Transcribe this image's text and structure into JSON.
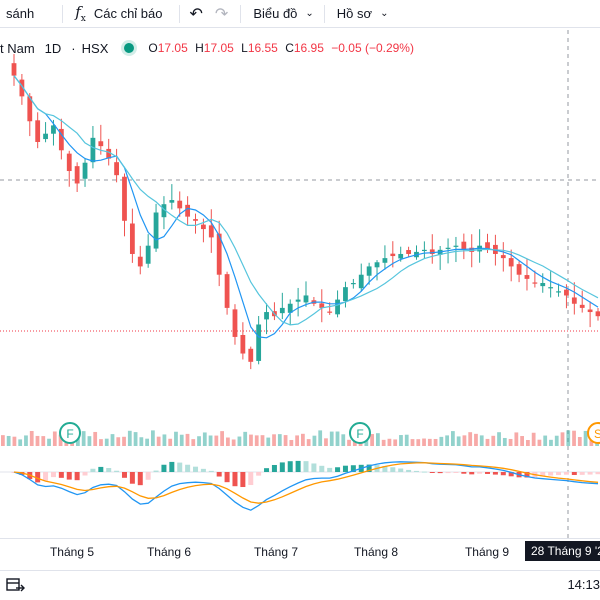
{
  "toolbar": {
    "compare_label": "sánh",
    "indicators_label": "Các chỉ báo",
    "chart_label": "Biểu đồ",
    "profile_label": "Hồ sơ"
  },
  "legend": {
    "symbol": "t Nam",
    "interval": "1D",
    "exchange": "HSX",
    "o_label": "O",
    "o_value": "17.05",
    "h_label": "H",
    "h_value": "17.05",
    "l_label": "L",
    "l_value": "16.55",
    "c_label": "C",
    "c_value": "16.95",
    "change": "−0.05 (−0.29%)"
  },
  "chart_data": {
    "type": "candlestick",
    "x_labels": [
      "Tháng 5",
      "Tháng 6",
      "Tháng 7",
      "Tháng 8",
      "Tháng 9"
    ],
    "crosshair_date": "28 Tháng 9 '2",
    "series_price_close": [
      21.9,
      21.4,
      20.8,
      20.3,
      20.5,
      20.7,
      20.1,
      19.6,
      19.3,
      19.8,
      20.4,
      20.2,
      19.9,
      19.5,
      18.4,
      17.6,
      17.3,
      17.8,
      18.6,
      18.8,
      18.9,
      18.7,
      18.5,
      18.4,
      18.2,
      18.0,
      17.1,
      16.3,
      15.6,
      15.2,
      15.0,
      15.9,
      16.2,
      16.1,
      16.3,
      16.4,
      16.5,
      16.6,
      16.4,
      16.3,
      16.2,
      16.5,
      16.8,
      16.9,
      17.1,
      17.3,
      17.4,
      17.5,
      17.55,
      17.6,
      17.6,
      17.65,
      17.7,
      17.6,
      17.7,
      17.75,
      17.8,
      17.7,
      17.65,
      17.8,
      17.7,
      17.6,
      17.5,
      17.3,
      17.1,
      17.0,
      16.9,
      16.9,
      16.8,
      16.7,
      16.6,
      16.4,
      16.3,
      16.2,
      16.1
    ],
    "markers": [
      "F",
      "F",
      "S"
    ],
    "colors": {
      "up": "#26a69a",
      "down": "#ef5350",
      "ma_fast": "#2196f3",
      "ma_slow": "#56c5dd",
      "macd_signal": "#ff9800"
    }
  },
  "xaxis": {
    "labels": [
      "Tháng 5",
      "Tháng 6",
      "Tháng 7",
      "Tháng 8",
      "Tháng 9"
    ],
    "crosshair_label": "28 Tháng 9 '2"
  },
  "status": {
    "clock": "14:13"
  },
  "icons": [
    "indicators-fx-icon",
    "undo-icon",
    "redo-icon",
    "chevron-down-icon",
    "date-range-icon"
  ]
}
